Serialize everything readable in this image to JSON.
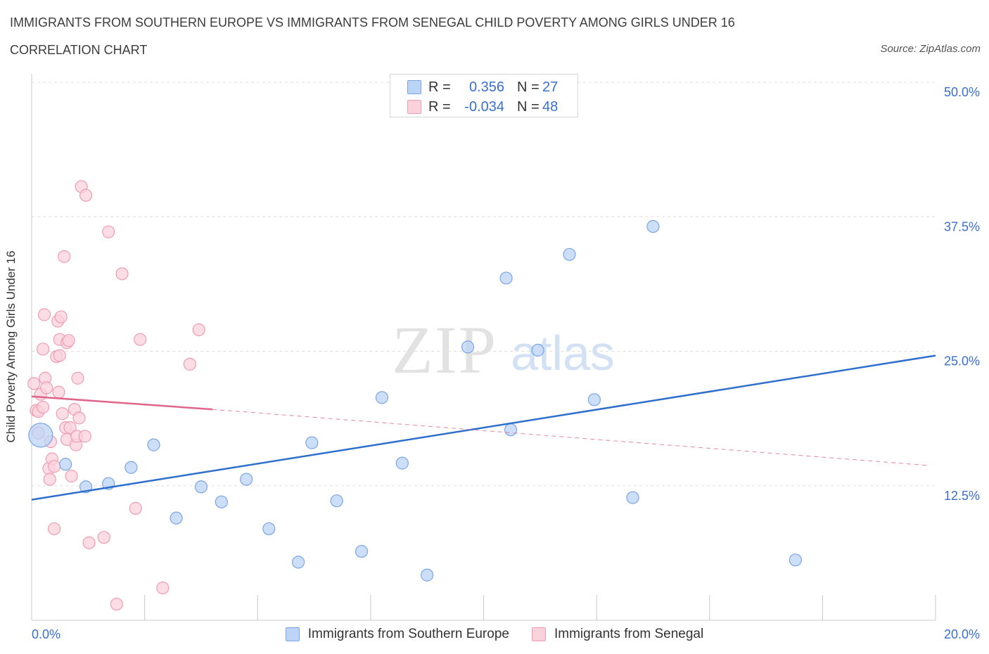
{
  "header": {
    "title": "IMMIGRANTS FROM SOUTHERN EUROPE VS IMMIGRANTS FROM SENEGAL CHILD POVERTY AMONG GIRLS UNDER 16",
    "subtitle": "CORRELATION CHART",
    "source": "Source: ZipAtlas.com"
  },
  "legend_top": {
    "rows": [
      {
        "r_label": "R =",
        "r_value": "0.356",
        "n_label": "N =",
        "n_value": "27"
      },
      {
        "r_label": "R =",
        "r_value": "-0.034",
        "n_label": "N =",
        "n_value": "48"
      }
    ]
  },
  "legend_bottom": {
    "items": [
      {
        "label": "Immigrants from Southern Europe"
      },
      {
        "label": "Immigrants from Senegal"
      }
    ]
  },
  "watermark": {
    "zip": "ZIP",
    "atlas": "atlas"
  },
  "colors": {
    "blue_fill": "#bcd4f5",
    "blue_stroke": "#7aa6e6",
    "blue_line": "#2f6fcc",
    "pink_fill": "#fbd1dc",
    "pink_stroke": "#ee9db3",
    "pink_line": "#e0658a",
    "axis_text": "#3a6fcf",
    "grid": "#dedede"
  },
  "chart_data": {
    "type": "scatter",
    "title": "IMMIGRANTS FROM SOUTHERN EUROPE VS IMMIGRANTS FROM SENEGAL CHILD POVERTY AMONG GIRLS UNDER 16",
    "xlabel": "",
    "ylabel": "Child Poverty Among Girls Under 16",
    "xlim": [
      0,
      20
    ],
    "ylim": [
      0,
      50
    ],
    "x_tick_labels": [
      {
        "value": 0,
        "label": "0.0%"
      },
      {
        "value": 20,
        "label": "20.0%"
      }
    ],
    "y_tick_labels": [
      {
        "value": 12.5,
        "label": "12.5%"
      },
      {
        "value": 25,
        "label": "25.0%"
      },
      {
        "value": 37.5,
        "label": "37.5%"
      },
      {
        "value": 50,
        "label": "50.0%"
      }
    ],
    "series": [
      {
        "name": "Immigrants from Southern Europe",
        "r": 0.356,
        "n": 27,
        "trend": {
          "x0": 0,
          "y0": 11.2,
          "x1": 20,
          "y1": 24.6,
          "dashed_to": null
        },
        "points": [
          {
            "x": 0.2,
            "y": 17.2,
            "big": true
          },
          {
            "x": 0.75,
            "y": 14.5
          },
          {
            "x": 1.2,
            "y": 12.4
          },
          {
            "x": 1.7,
            "y": 12.7
          },
          {
            "x": 2.2,
            "y": 14.2
          },
          {
            "x": 2.7,
            "y": 16.3
          },
          {
            "x": 3.2,
            "y": 9.5
          },
          {
            "x": 3.75,
            "y": 12.4
          },
          {
            "x": 4.2,
            "y": 11.0
          },
          {
            "x": 4.75,
            "y": 13.1
          },
          {
            "x": 5.25,
            "y": 8.5
          },
          {
            "x": 5.9,
            "y": 5.4
          },
          {
            "x": 6.2,
            "y": 16.5
          },
          {
            "x": 6.75,
            "y": 11.1
          },
          {
            "x": 7.3,
            "y": 6.4
          },
          {
            "x": 7.75,
            "y": 20.7
          },
          {
            "x": 8.2,
            "y": 14.6
          },
          {
            "x": 8.75,
            "y": 4.2
          },
          {
            "x": 9.65,
            "y": 25.4
          },
          {
            "x": 10.5,
            "y": 31.8
          },
          {
            "x": 10.6,
            "y": 17.7
          },
          {
            "x": 11.2,
            "y": 25.1
          },
          {
            "x": 11.9,
            "y": 34.0
          },
          {
            "x": 12.45,
            "y": 20.5
          },
          {
            "x": 13.75,
            "y": 36.6
          },
          {
            "x": 13.3,
            "y": 11.4
          },
          {
            "x": 16.9,
            "y": 5.6
          }
        ]
      },
      {
        "name": "Immigrants from Senegal",
        "r": -0.034,
        "n": 48,
        "trend": {
          "x0": 0,
          "y0": 20.8,
          "x1": 4.0,
          "y1": 19.6,
          "dashed_to": {
            "x": 19.8,
            "y": 14.4
          }
        },
        "points": [
          {
            "x": 0.05,
            "y": 22.0
          },
          {
            "x": 0.1,
            "y": 19.5
          },
          {
            "x": 0.15,
            "y": 19.4
          },
          {
            "x": 0.2,
            "y": 21.0
          },
          {
            "x": 0.25,
            "y": 19.8
          },
          {
            "x": 0.25,
            "y": 25.2
          },
          {
            "x": 0.28,
            "y": 28.4
          },
          {
            "x": 0.3,
            "y": 22.5
          },
          {
            "x": 0.33,
            "y": 21.6
          },
          {
            "x": 0.38,
            "y": 14.1
          },
          {
            "x": 0.4,
            "y": 13.1
          },
          {
            "x": 0.42,
            "y": 16.6
          },
          {
            "x": 0.45,
            "y": 15.0
          },
          {
            "x": 0.5,
            "y": 14.3
          },
          {
            "x": 0.5,
            "y": 8.5
          },
          {
            "x": 0.55,
            "y": 24.5
          },
          {
            "x": 0.58,
            "y": 27.8
          },
          {
            "x": 0.62,
            "y": 24.6
          },
          {
            "x": 0.62,
            "y": 26.1
          },
          {
            "x": 0.65,
            "y": 28.2
          },
          {
            "x": 0.68,
            "y": 19.2
          },
          {
            "x": 0.72,
            "y": 33.8
          },
          {
            "x": 0.75,
            "y": 17.9
          },
          {
            "x": 0.78,
            "y": 16.8
          },
          {
            "x": 0.78,
            "y": 25.8
          },
          {
            "x": 0.82,
            "y": 26.0
          },
          {
            "x": 0.85,
            "y": 17.9
          },
          {
            "x": 0.88,
            "y": 13.4
          },
          {
            "x": 0.95,
            "y": 19.6
          },
          {
            "x": 0.98,
            "y": 16.3
          },
          {
            "x": 1.0,
            "y": 17.1
          },
          {
            "x": 1.02,
            "y": 22.5
          },
          {
            "x": 1.05,
            "y": 18.8
          },
          {
            "x": 1.1,
            "y": 40.3
          },
          {
            "x": 1.18,
            "y": 17.1
          },
          {
            "x": 1.2,
            "y": 39.5
          },
          {
            "x": 1.27,
            "y": 7.2
          },
          {
            "x": 1.6,
            "y": 7.7
          },
          {
            "x": 1.7,
            "y": 36.1
          },
          {
            "x": 1.88,
            "y": 1.5
          },
          {
            "x": 2.0,
            "y": 32.2
          },
          {
            "x": 2.3,
            "y": 10.4
          },
          {
            "x": 2.4,
            "y": 26.1
          },
          {
            "x": 2.9,
            "y": 3.0
          },
          {
            "x": 3.5,
            "y": 23.8
          },
          {
            "x": 3.7,
            "y": 27.0
          },
          {
            "x": 0.15,
            "y": 17.4
          },
          {
            "x": 0.6,
            "y": 21.2
          }
        ]
      }
    ]
  }
}
